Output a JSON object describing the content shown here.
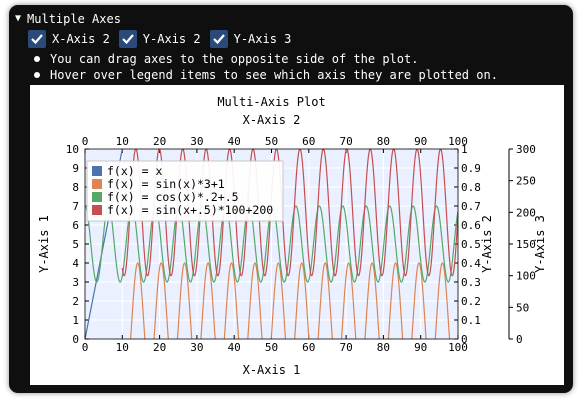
{
  "header": {
    "title": "Multiple Axes"
  },
  "checkboxes": [
    {
      "label": "X-Axis 2",
      "checked": true
    },
    {
      "label": "Y-Axis 2",
      "checked": true
    },
    {
      "label": "Y-Axis 3",
      "checked": true
    }
  ],
  "bullets": [
    "You can drag axes to the opposite side of the plot.",
    "Hover over legend items to see which axis they are plotted on."
  ],
  "colors": {
    "window_bg": "#0f0f0f",
    "checkbox_bg": "#2a4a7c",
    "plot_bg": "#eaf0ff",
    "grid": "#ffffff"
  },
  "chart_data": {
    "type": "line",
    "title": "Multi-Axis Plot",
    "xlabel": "X-Axis 1",
    "x2label": "X-Axis 2",
    "ylabel": "Y-Axis 1",
    "y2label": "Y-Axis 2",
    "y3label": "Y-Axis 3",
    "xlim": [
      0,
      100
    ],
    "x2lim": [
      0,
      100
    ],
    "ylim": [
      0,
      10
    ],
    "y2lim": [
      0,
      1
    ],
    "y3lim": [
      0,
      300
    ],
    "xticks": [
      "0",
      "10",
      "20",
      "30",
      "40",
      "50",
      "60",
      "70",
      "80",
      "90",
      "100"
    ],
    "x2ticks": [
      "0",
      "10",
      "20",
      "30",
      "40",
      "50",
      "60",
      "70",
      "80",
      "90",
      "100"
    ],
    "yticks": [
      "0",
      "1",
      "2",
      "3",
      "4",
      "5",
      "6",
      "7",
      "8",
      "9",
      "10"
    ],
    "y2ticks": [
      "0",
      "0.1",
      "0.2",
      "0.3",
      "0.4",
      "0.5",
      "0.6",
      "0.7",
      "0.8",
      "0.9",
      "1"
    ],
    "y3ticks": [
      "0",
      "50",
      "100",
      "150",
      "200",
      "250",
      "300"
    ],
    "grid": true,
    "legend_position": "top-left",
    "series": [
      {
        "name": "f(x) = x",
        "color": "#4c72b0",
        "axis": "y1",
        "x_range": [
          0,
          10
        ],
        "expr": "x"
      },
      {
        "name": "f(x) = sin(x)*3+1",
        "color": "#dd8452",
        "axis": "y1",
        "x_range": [
          10,
          100
        ],
        "expr": "sin(x)*3+1"
      },
      {
        "name": "f(x) = cos(x)*.2+.5",
        "color": "#55a868",
        "axis": "y2",
        "x_range": [
          0,
          100
        ],
        "expr": "cos(x)*.2+.5"
      },
      {
        "name": "f(x) = sin(x+.5)*100+200",
        "color": "#c44e52",
        "axis": "y3",
        "x_range": [
          10,
          100
        ],
        "expr": "sin(x+.5)*100+200"
      }
    ]
  }
}
